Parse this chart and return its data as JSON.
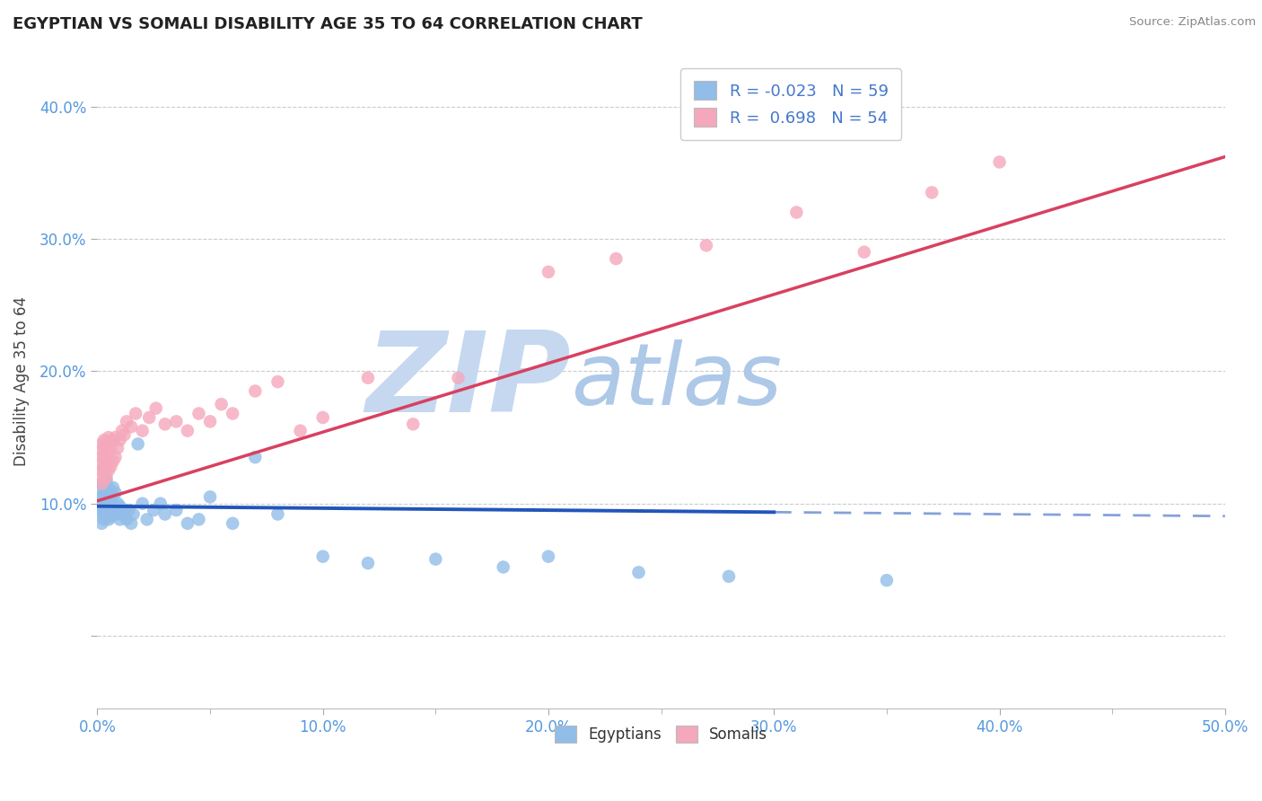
{
  "title": "EGYPTIAN VS SOMALI DISABILITY AGE 35 TO 64 CORRELATION CHART",
  "source_text": "Source: ZipAtlas.com",
  "ylabel": "Disability Age 35 to 64",
  "xlim": [
    0.0,
    0.5
  ],
  "ylim": [
    -0.055,
    0.44
  ],
  "legend_R1": "-0.023",
  "legend_N1": "59",
  "legend_R2": "0.698",
  "legend_N2": "54",
  "color_egyptian": "#92bde8",
  "color_somali": "#f5a8bc",
  "color_egyptian_line": "#2255bb",
  "color_somali_line": "#d94060",
  "watermark_zip": "ZIP",
  "watermark_atlas": "atlas",
  "watermark_color_zip": "#c8d8ee",
  "watermark_color_atlas": "#b0cce8",
  "egyptian_x": [
    0.001,
    0.001,
    0.001,
    0.002,
    0.002,
    0.002,
    0.002,
    0.003,
    0.003,
    0.003,
    0.003,
    0.003,
    0.004,
    0.004,
    0.004,
    0.004,
    0.005,
    0.005,
    0.005,
    0.005,
    0.006,
    0.006,
    0.006,
    0.007,
    0.007,
    0.007,
    0.008,
    0.008,
    0.009,
    0.009,
    0.01,
    0.01,
    0.011,
    0.012,
    0.013,
    0.014,
    0.015,
    0.016,
    0.018,
    0.02,
    0.022,
    0.025,
    0.028,
    0.03,
    0.035,
    0.04,
    0.045,
    0.05,
    0.06,
    0.07,
    0.08,
    0.1,
    0.12,
    0.15,
    0.18,
    0.2,
    0.24,
    0.28,
    0.35
  ],
  "egyptian_y": [
    0.095,
    0.1,
    0.11,
    0.085,
    0.092,
    0.105,
    0.115,
    0.088,
    0.095,
    0.108,
    0.115,
    0.125,
    0.092,
    0.1,
    0.108,
    0.118,
    0.088,
    0.095,
    0.105,
    0.112,
    0.09,
    0.098,
    0.108,
    0.092,
    0.1,
    0.112,
    0.095,
    0.108,
    0.092,
    0.1,
    0.088,
    0.098,
    0.092,
    0.095,
    0.088,
    0.095,
    0.085,
    0.092,
    0.145,
    0.1,
    0.088,
    0.095,
    0.1,
    0.092,
    0.095,
    0.085,
    0.088,
    0.105,
    0.085,
    0.135,
    0.092,
    0.06,
    0.055,
    0.058,
    0.052,
    0.06,
    0.048,
    0.045,
    0.042
  ],
  "somali_x": [
    0.001,
    0.001,
    0.001,
    0.002,
    0.002,
    0.002,
    0.002,
    0.003,
    0.003,
    0.003,
    0.003,
    0.004,
    0.004,
    0.004,
    0.005,
    0.005,
    0.005,
    0.006,
    0.006,
    0.007,
    0.007,
    0.008,
    0.008,
    0.009,
    0.01,
    0.011,
    0.012,
    0.013,
    0.015,
    0.017,
    0.02,
    0.023,
    0.026,
    0.03,
    0.035,
    0.04,
    0.045,
    0.05,
    0.055,
    0.06,
    0.07,
    0.08,
    0.09,
    0.1,
    0.12,
    0.14,
    0.16,
    0.2,
    0.23,
    0.27,
    0.31,
    0.34,
    0.37,
    0.4
  ],
  "somali_y": [
    0.12,
    0.13,
    0.14,
    0.115,
    0.125,
    0.135,
    0.145,
    0.118,
    0.128,
    0.138,
    0.148,
    0.12,
    0.13,
    0.145,
    0.125,
    0.138,
    0.15,
    0.128,
    0.142,
    0.132,
    0.148,
    0.135,
    0.15,
    0.142,
    0.148,
    0.155,
    0.152,
    0.162,
    0.158,
    0.168,
    0.155,
    0.165,
    0.172,
    0.16,
    0.162,
    0.155,
    0.168,
    0.162,
    0.175,
    0.168,
    0.185,
    0.192,
    0.155,
    0.165,
    0.195,
    0.16,
    0.195,
    0.275,
    0.285,
    0.295,
    0.32,
    0.29,
    0.335,
    0.358
  ]
}
